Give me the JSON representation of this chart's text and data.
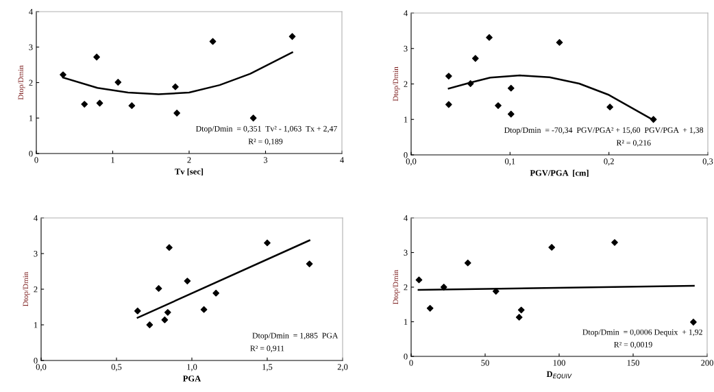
{
  "chart_data": [
    {
      "type": "scatter",
      "xlabel": "Tv [sec]",
      "ylabel": "Dtop/Dmin",
      "xlim": [
        0,
        4
      ],
      "xticks": [
        0,
        1,
        2,
        3,
        4
      ],
      "ylim": [
        0,
        4
      ],
      "yticks": [
        0,
        1,
        2,
        3,
        4
      ],
      "marker": "diamond",
      "grid": false,
      "legend": false,
      "annotations": [
        "Dtop/Dmin  = 0,351  Tv² - 1,063  Tx + 2,47",
        "R² = 0,189"
      ],
      "series": [
        {
          "type": "scatter",
          "color": "#000000",
          "x": [
            0.35,
            0.63,
            0.79,
            0.83,
            1.07,
            1.25,
            1.82,
            1.84,
            2.31,
            2.84,
            3.35
          ],
          "values": [
            2.22,
            1.39,
            2.72,
            1.42,
            2.01,
            1.35,
            1.88,
            1.14,
            3.16,
            1.0,
            3.3
          ]
        },
        {
          "type": "line",
          "color": "#000000",
          "marker": "none",
          "x": [
            0.35,
            0.8,
            1.2,
            1.6,
            2.0,
            2.4,
            2.8,
            3.35
          ],
          "values": [
            2.14,
            1.85,
            1.72,
            1.67,
            1.72,
            1.93,
            2.25,
            2.85
          ]
        }
      ]
    },
    {
      "type": "scatter",
      "xlabel": "PGV/PGA  [cm]",
      "ylabel": "Dtop/Dmin",
      "xlim": [
        0,
        0.3
      ],
      "xticks": [
        {
          "value": 0,
          "label": "0,0"
        },
        {
          "value": 0.1,
          "label": "0,1"
        },
        {
          "value": 0.2,
          "label": "0,2"
        },
        {
          "value": 0.3,
          "label": "0,3"
        }
      ],
      "ylim": [
        0,
        4
      ],
      "yticks": [
        0,
        1,
        2,
        3,
        4
      ],
      "marker": "diamond",
      "grid": false,
      "legend": false,
      "annotations": [
        "Dtop/Dmin  = -70,34  PGV/PGA² + 15,60  PGV/PGA  + 1,38",
        "R² = 0,216"
      ],
      "series": [
        {
          "type": "scatter",
          "color": "#000000",
          "x": [
            0.038,
            0.038,
            0.06,
            0.065,
            0.079,
            0.088,
            0.101,
            0.101,
            0.15,
            0.201,
            0.245
          ],
          "values": [
            1.42,
            2.22,
            2.01,
            2.72,
            3.31,
            1.39,
            1.88,
            1.15,
            3.17,
            1.35,
            1.0
          ]
        },
        {
          "type": "line",
          "color": "#000000",
          "marker": "none",
          "x": [
            0.038,
            0.06,
            0.08,
            0.11,
            0.14,
            0.17,
            0.2,
            0.245
          ],
          "values": [
            1.87,
            2.04,
            2.18,
            2.24,
            2.19,
            2.01,
            1.69,
            0.98
          ]
        }
      ]
    },
    {
      "type": "scatter",
      "xlabel": "PGA",
      "ylabel": "Dtop/Dmin",
      "xlim": [
        0,
        2
      ],
      "xticks": [
        {
          "value": 0,
          "label": "0,0"
        },
        {
          "value": 0.5,
          "label": "0,5"
        },
        {
          "value": 1,
          "label": "1,0"
        },
        {
          "value": 1.5,
          "label": "1,5"
        },
        {
          "value": 2,
          "label": "2,0"
        }
      ],
      "ylim": [
        0,
        4
      ],
      "yticks": [
        0,
        1,
        2,
        3,
        4
      ],
      "marker": "diamond",
      "grid": false,
      "legend": false,
      "annotations": [
        "Dtop/Dmin  = 1,885  PGA",
        "R² = 0,911"
      ],
      "series": [
        {
          "type": "scatter",
          "color": "#000000",
          "x": [
            0.64,
            0.72,
            0.78,
            0.82,
            0.84,
            0.85,
            0.97,
            1.08,
            1.16,
            1.5,
            1.78
          ],
          "values": [
            1.39,
            1.0,
            2.02,
            1.14,
            1.35,
            3.17,
            2.23,
            1.43,
            1.89,
            3.3,
            2.71
          ]
        },
        {
          "type": "line",
          "color": "#000000",
          "marker": "none",
          "x": [
            0.64,
            1.78
          ],
          "values": [
            1.2,
            3.37
          ]
        }
      ]
    },
    {
      "type": "scatter",
      "xlabel": "D$_{EQUIV}$",
      "ylabel": "Dtop/Dmin",
      "xlim": [
        0,
        200
      ],
      "xticks": [
        0,
        50,
        100,
        150,
        200
      ],
      "ylim": [
        0,
        4
      ],
      "yticks": [
        0,
        1,
        2,
        3,
        4
      ],
      "marker": "diamond",
      "grid": false,
      "legend": false,
      "annotations": [
        "Dtop/Dmin  = 0,0006 Dequix  + 1,92",
        "R² = 0,0019"
      ],
      "series": [
        {
          "type": "scatter",
          "color": "#000000",
          "x": [
            5.3,
            12.8,
            22.1,
            38.3,
            57.3,
            73.0,
            74.4,
            95.0,
            137.5,
            190.7
          ],
          "values": [
            2.21,
            1.39,
            2.0,
            2.7,
            1.88,
            1.13,
            1.34,
            3.15,
            3.29,
            0.99
          ]
        },
        {
          "type": "line",
          "color": "#000000",
          "marker": "none",
          "x": [
            5,
            191
          ],
          "values": [
            1.92,
            2.04
          ]
        }
      ]
    }
  ]
}
